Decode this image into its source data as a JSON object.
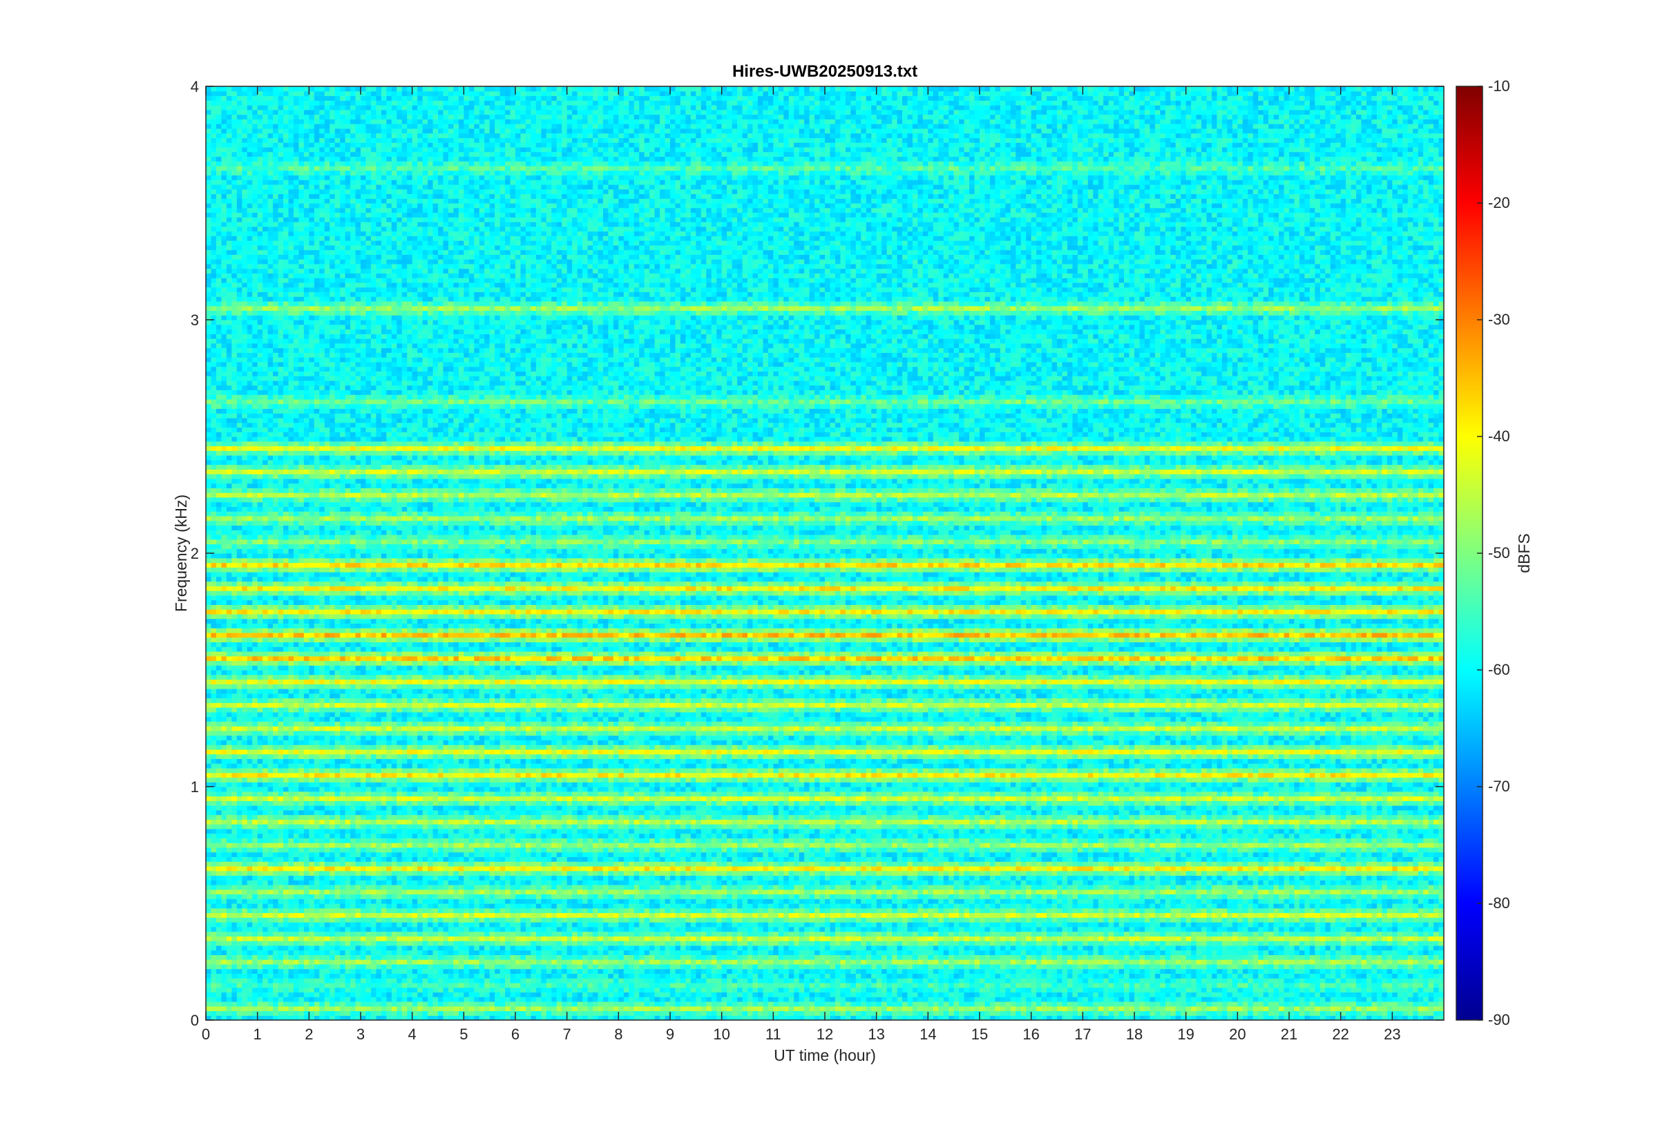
{
  "chart_data": {
    "type": "heatmap",
    "title": "Hires-UWB20250913.txt",
    "xlabel": "UT time (hour)",
    "ylabel": "Frequency (kHz)",
    "colorbar_label": "dBFS",
    "xlim": [
      0,
      24
    ],
    "ylim": [
      0,
      4
    ],
    "clim": [
      -90,
      -10
    ],
    "colormap": "jet",
    "x_ticks": [
      "0",
      "1",
      "2",
      "3",
      "4",
      "5",
      "6",
      "7",
      "8",
      "9",
      "10",
      "11",
      "12",
      "13",
      "14",
      "15",
      "16",
      "17",
      "18",
      "19",
      "20",
      "21",
      "22",
      "23"
    ],
    "y_ticks": [
      "0",
      "1",
      "2",
      "3",
      "4"
    ],
    "colorbar_ticks": [
      "-90",
      "-80",
      "-70",
      "-60",
      "-50",
      "-40",
      "-30",
      "-20",
      "-10"
    ],
    "background_dbfs": -60,
    "bands": [
      {
        "freq_khz": 0.05,
        "level_dbfs": -48
      },
      {
        "freq_khz": 0.15,
        "level_dbfs": -55
      },
      {
        "freq_khz": 0.25,
        "level_dbfs": -48
      },
      {
        "freq_khz": 0.35,
        "level_dbfs": -45
      },
      {
        "freq_khz": 0.45,
        "level_dbfs": -44
      },
      {
        "freq_khz": 0.55,
        "level_dbfs": -48
      },
      {
        "freq_khz": 0.65,
        "level_dbfs": -40
      },
      {
        "freq_khz": 0.75,
        "level_dbfs": -48
      },
      {
        "freq_khz": 0.85,
        "level_dbfs": -46
      },
      {
        "freq_khz": 0.95,
        "level_dbfs": -44
      },
      {
        "freq_khz": 1.05,
        "level_dbfs": -40
      },
      {
        "freq_khz": 1.15,
        "level_dbfs": -42
      },
      {
        "freq_khz": 1.25,
        "level_dbfs": -45
      },
      {
        "freq_khz": 1.35,
        "level_dbfs": -44
      },
      {
        "freq_khz": 1.45,
        "level_dbfs": -42
      },
      {
        "freq_khz": 1.55,
        "level_dbfs": -37
      },
      {
        "freq_khz": 1.65,
        "level_dbfs": -36
      },
      {
        "freq_khz": 1.75,
        "level_dbfs": -40
      },
      {
        "freq_khz": 1.85,
        "level_dbfs": -40
      },
      {
        "freq_khz": 1.95,
        "level_dbfs": -38
      },
      {
        "freq_khz": 2.05,
        "level_dbfs": -50
      },
      {
        "freq_khz": 2.15,
        "level_dbfs": -48
      },
      {
        "freq_khz": 2.25,
        "level_dbfs": -46
      },
      {
        "freq_khz": 2.35,
        "level_dbfs": -44
      },
      {
        "freq_khz": 2.45,
        "level_dbfs": -42
      },
      {
        "freq_khz": 2.65,
        "level_dbfs": -52
      },
      {
        "freq_khz": 3.05,
        "level_dbfs": -48
      },
      {
        "freq_khz": 3.65,
        "level_dbfs": -54
      }
    ]
  }
}
